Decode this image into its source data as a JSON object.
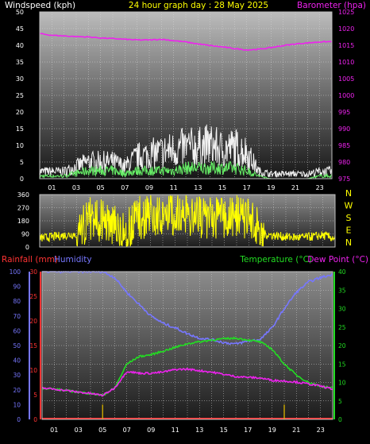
{
  "header": {
    "windspeed_label": "Windspeed (kph)",
    "graph_title": "24 hour graph day : 28 May 2025",
    "barometer_label": "Barometer (hpa)"
  },
  "middle_header": {
    "rainfall_label": "Rainfall (mm)",
    "humidity_label": "Humidity",
    "temperature_label": "Temperature (°C)",
    "dewpoint_label": "Dew Point (°C)"
  },
  "compass": [
    "N",
    "W",
    "S",
    "E",
    "N"
  ],
  "colors": {
    "gust": "#f0f0f0",
    "wind": "#66ee66",
    "barometer": "#ee22ee",
    "direction": "#ffff00",
    "humidity": "#7777ff",
    "temperature": "#22dd22",
    "dewpoint": "#ee22ee",
    "rain": "#ff3333",
    "rain_rate": "#ccaa00",
    "title": "#ffff00"
  },
  "chart_data": [
    {
      "type": "line",
      "name": "wind",
      "x_ticks": [
        "01",
        "03",
        "05",
        "07",
        "09",
        "11",
        "13",
        "15",
        "17",
        "19",
        "21",
        "23"
      ],
      "y_left": {
        "label": "Windspeed (kph)",
        "ylim": [
          0,
          50
        ],
        "ticks": [
          0,
          5,
          10,
          15,
          20,
          25,
          30,
          35,
          40,
          45,
          50
        ]
      },
      "y_right": {
        "label": "Barometer (hpa)",
        "ylim": [
          975,
          1025
        ],
        "ticks": [
          975,
          980,
          985,
          990,
          995,
          1000,
          1005,
          1010,
          1015,
          1020,
          1025
        ]
      },
      "grid": true,
      "series": [
        {
          "name": "Windspeed (kph)",
          "x": [
            0,
            1,
            2,
            3,
            4,
            5,
            6,
            7,
            8,
            9,
            10,
            11,
            12,
            13,
            14,
            15,
            16,
            17,
            18,
            19,
            20,
            21,
            22,
            23,
            24
          ],
          "values": [
            1,
            1,
            1,
            2,
            3,
            3,
            3,
            2,
            3,
            3,
            3,
            3,
            4,
            4,
            4,
            4,
            4,
            3,
            1,
            0,
            0,
            0,
            0,
            1,
            1
          ]
        },
        {
          "name": "gust",
          "x": [
            0,
            1,
            2,
            3,
            4,
            5,
            6,
            7,
            8,
            9,
            10,
            11,
            12,
            13,
            14,
            15,
            16,
            17,
            18,
            19,
            20,
            21,
            22,
            23,
            24
          ],
          "values": [
            3,
            3,
            3,
            5,
            7,
            7,
            7,
            5,
            9,
            10,
            11,
            12,
            13,
            13,
            14,
            12,
            13,
            11,
            3,
            2,
            2,
            2,
            2,
            3,
            3
          ]
        },
        {
          "name": "Barometer (hpa)",
          "x": [
            0,
            1,
            2,
            3,
            4,
            5,
            6,
            7,
            8,
            9,
            10,
            11,
            12,
            13,
            14,
            15,
            16,
            17,
            18,
            19,
            20,
            21,
            22,
            23,
            24
          ],
          "values": [
            1018.5,
            1018,
            1017.8,
            1017.6,
            1017.5,
            1017.2,
            1017,
            1016.8,
            1016.6,
            1016.6,
            1016.8,
            1016.4,
            1016,
            1015.4,
            1014.9,
            1014.5,
            1014.0,
            1013.6,
            1013.8,
            1014.3,
            1014.9,
            1015.4,
            1015.7,
            1016,
            1016.1
          ]
        }
      ]
    },
    {
      "type": "line",
      "name": "wind direction",
      "x_ticks": [],
      "y_left": {
        "ylim": [
          0,
          360
        ],
        "ticks": [
          0,
          90,
          180,
          270,
          360
        ]
      },
      "grid": true,
      "series": [
        {
          "name": "direction",
          "x": [
            0,
            1,
            2,
            3,
            4,
            5,
            6,
            7,
            8,
            9,
            10,
            11,
            12,
            13,
            14,
            15,
            16,
            17,
            18,
            19,
            20,
            21,
            22,
            23,
            24
          ],
          "values": [
            60,
            70,
            80,
            90,
            200,
            180,
            150,
            100,
            200,
            210,
            220,
            230,
            220,
            210,
            200,
            210,
            220,
            200,
            90,
            80,
            70,
            65,
            70,
            80,
            60
          ]
        }
      ]
    },
    {
      "type": "line",
      "name": "temperature / humidity / rain",
      "x_ticks": [
        "01",
        "03",
        "05",
        "07",
        "09",
        "11",
        "13",
        "15",
        "17",
        "19",
        "21",
        "23"
      ],
      "y_humidity": {
        "label": "Humidity",
        "ylim": [
          0,
          100
        ],
        "ticks": [
          0,
          10,
          20,
          30,
          40,
          50,
          60,
          70,
          80,
          90,
          100
        ]
      },
      "y_rain": {
        "label": "Rainfall (mm)",
        "ylim": [
          0,
          30
        ],
        "ticks": [
          0,
          5,
          10,
          15,
          20,
          25,
          30
        ]
      },
      "y_temp": {
        "label": "Temperature (°C)",
        "ylim": [
          0,
          40
        ],
        "ticks": [
          0,
          5,
          10,
          15,
          20,
          25,
          30,
          35,
          40
        ]
      },
      "grid": true,
      "series": [
        {
          "name": "Humidity",
          "x": [
            0,
            1,
            2,
            3,
            4,
            5,
            6,
            7,
            8,
            9,
            10,
            11,
            12,
            13,
            14,
            15,
            16,
            17,
            18,
            19,
            20,
            21,
            22,
            23,
            24
          ],
          "values": [
            100,
            100,
            100,
            100,
            100,
            100,
            96,
            86,
            78,
            70,
            65,
            62,
            58,
            55,
            54,
            52,
            51,
            53,
            54,
            62,
            75,
            86,
            93,
            96,
            98
          ]
        },
        {
          "name": "Temperature (°C)",
          "x": [
            0,
            1,
            2,
            3,
            4,
            5,
            6,
            7,
            8,
            9,
            10,
            11,
            12,
            13,
            14,
            15,
            16,
            17,
            18,
            19,
            20,
            21,
            22,
            23,
            24
          ],
          "values": [
            8.5,
            8.2,
            7.8,
            7.4,
            7,
            6.5,
            8.5,
            15,
            17,
            17.5,
            18.5,
            19.5,
            20.5,
            21,
            21.5,
            21.8,
            22,
            21.5,
            21,
            19,
            15,
            12,
            10,
            9,
            8.5
          ]
        },
        {
          "name": "Dew Point (°C)",
          "x": [
            0,
            1,
            2,
            3,
            4,
            5,
            6,
            7,
            8,
            9,
            10,
            11,
            12,
            13,
            14,
            15,
            16,
            17,
            18,
            19,
            20,
            21,
            22,
            23,
            24
          ],
          "values": [
            8.5,
            8.2,
            7.8,
            7.4,
            7,
            6.5,
            8.5,
            13,
            12.5,
            12.5,
            12.8,
            13.5,
            13.6,
            13.2,
            12.8,
            12.2,
            11.6,
            11.4,
            11.2,
            10.6,
            10.4,
            10.1,
            9.6,
            9,
            8.2
          ]
        },
        {
          "name": "Rainfall (mm)",
          "x": [
            0,
            24
          ],
          "values": [
            0,
            0
          ]
        },
        {
          "name": "rain rate",
          "x": [
            5,
            20
          ],
          "values": [
            3,
            3
          ]
        }
      ]
    }
  ]
}
